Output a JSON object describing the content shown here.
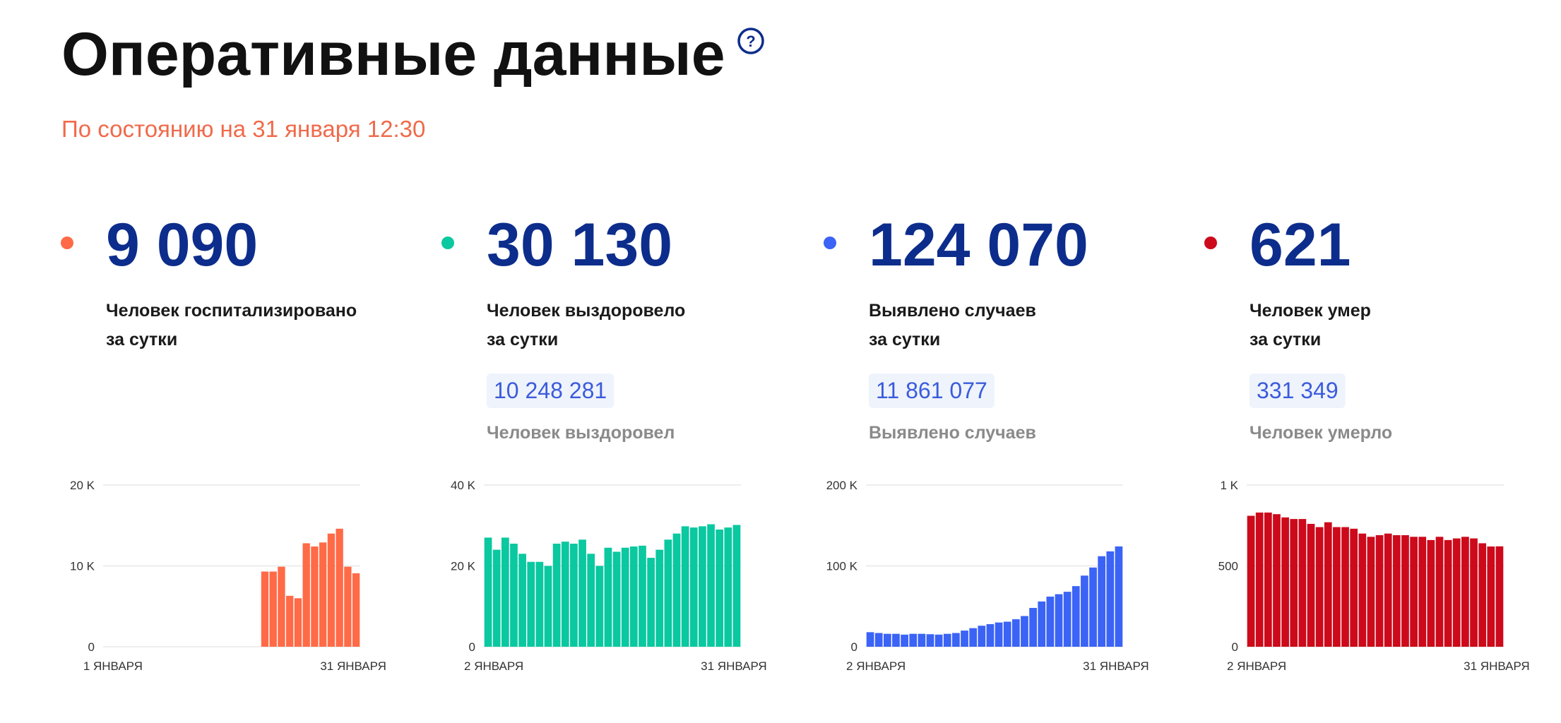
{
  "header": {
    "title": "Оперативные данные",
    "subtitle": "По состоянию на 31 января 12:30"
  },
  "cards": [
    {
      "number": "9 090",
      "caption": [
        "Человек госпитализировано",
        "за сутки"
      ]
    },
    {
      "number": "30 130",
      "caption": [
        "Человек выздоровело",
        "за сутки"
      ],
      "total": "10 248 281",
      "total_caption": "Человек выздоровел"
    },
    {
      "number": "124 070",
      "caption": [
        "Выявлено случаев",
        "за сутки"
      ],
      "total": "11 861 077",
      "total_caption": "Выявлено случаев"
    },
    {
      "number": "621",
      "caption": [
        "Человек умер",
        "за сутки"
      ],
      "total": "331 349",
      "total_caption": "Человек умерло"
    }
  ],
  "chart_data": [
    {
      "type": "bar",
      "color": "#ff6a47",
      "categories": [
        "1 ЯНВАРЯ",
        null,
        null,
        null,
        null,
        null,
        null,
        null,
        null,
        null,
        null,
        null,
        null,
        null,
        null,
        null,
        null,
        null,
        null,
        null,
        null,
        null,
        null,
        null,
        null,
        null,
        null,
        null,
        null,
        null,
        "31 ЯНВАРЯ"
      ],
      "values": [
        null,
        null,
        null,
        null,
        null,
        null,
        null,
        null,
        null,
        null,
        null,
        null,
        null,
        null,
        null,
        null,
        null,
        null,
        null,
        9300,
        9300,
        9900,
        6300,
        6000,
        12800,
        12400,
        12900,
        14000,
        14600,
        9900,
        9090
      ],
      "ylim": [
        0,
        20000
      ],
      "yticks": [
        0,
        {
          "value": 10000,
          "label": "10 K"
        },
        {
          "value": 20000,
          "label": "20 K"
        }
      ],
      "grid": true
    },
    {
      "type": "bar",
      "color": "#0ac8a0",
      "categories": [
        "2 ЯНВАРЯ",
        null,
        null,
        null,
        null,
        null,
        null,
        null,
        null,
        null,
        null,
        null,
        null,
        null,
        null,
        null,
        null,
        null,
        null,
        null,
        null,
        null,
        null,
        null,
        null,
        null,
        null,
        null,
        null,
        "31 ЯНВАРЯ"
      ],
      "values": [
        27000,
        24000,
        27000,
        25500,
        23000,
        21000,
        21000,
        20000,
        25500,
        26000,
        25500,
        26500,
        23000,
        20000,
        24500,
        23500,
        24500,
        24800,
        25000,
        22000,
        24000,
        26500,
        28000,
        29800,
        29500,
        29800,
        30300,
        29000,
        29500,
        30130
      ],
      "ylim": [
        0,
        40000
      ],
      "yticks": [
        0,
        {
          "value": 20000,
          "label": "20 K"
        },
        {
          "value": 40000,
          "label": "40 K"
        }
      ],
      "grid": true
    },
    {
      "type": "bar",
      "color": "#3b63f5",
      "categories": [
        "2 ЯНВАРЯ",
        null,
        null,
        null,
        null,
        null,
        null,
        null,
        null,
        null,
        null,
        null,
        null,
        null,
        null,
        null,
        null,
        null,
        null,
        null,
        null,
        null,
        null,
        null,
        null,
        null,
        null,
        null,
        null,
        "31 ЯНВАРЯ"
      ],
      "values": [
        18000,
        17000,
        16000,
        16000,
        15000,
        16000,
        16000,
        15500,
        15000,
        16000,
        17000,
        20000,
        23000,
        26000,
        28000,
        30000,
        31000,
        34000,
        38000,
        48000,
        56000,
        62000,
        65000,
        68000,
        75000,
        88000,
        98000,
        112000,
        118000,
        124070
      ],
      "ylim": [
        0,
        200000
      ],
      "yticks": [
        0,
        {
          "value": 100000,
          "label": "100 K"
        },
        {
          "value": 200000,
          "label": "200 K"
        }
      ],
      "grid": true
    },
    {
      "type": "bar",
      "color": "#cc0a1b",
      "categories": [
        "2 ЯНВАРЯ",
        null,
        null,
        null,
        null,
        null,
        null,
        null,
        null,
        null,
        null,
        null,
        null,
        null,
        null,
        null,
        null,
        null,
        null,
        null,
        null,
        null,
        null,
        null,
        null,
        null,
        null,
        null,
        null,
        "31 ЯНВАРЯ"
      ],
      "values": [
        810,
        830,
        830,
        820,
        800,
        790,
        790,
        760,
        740,
        770,
        740,
        740,
        730,
        700,
        680,
        690,
        700,
        690,
        690,
        680,
        680,
        660,
        680,
        660,
        670,
        680,
        670,
        640,
        620,
        621
      ],
      "ylim": [
        0,
        1000
      ],
      "yticks": [
        0,
        500,
        {
          "value": 1000,
          "label": "1 K"
        }
      ],
      "grid": true
    }
  ]
}
